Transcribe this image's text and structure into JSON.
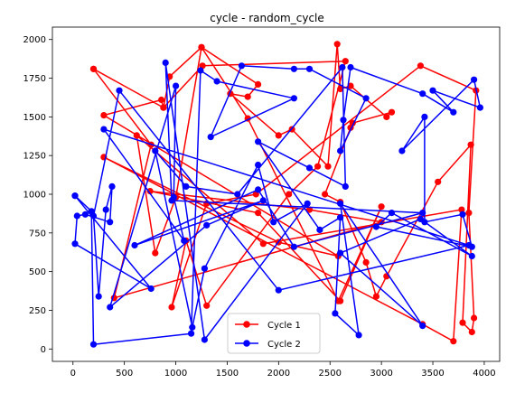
{
  "chart_data": {
    "type": "line",
    "title": "cycle - random_cycle",
    "xlabel": "",
    "ylabel": "",
    "xlim": [
      -200,
      4150
    ],
    "ylim": [
      -80,
      2080
    ],
    "xticks": [
      0,
      500,
      1000,
      1500,
      2000,
      2500,
      3000,
      3500,
      4000
    ],
    "yticks": [
      0,
      250,
      500,
      750,
      1000,
      1250,
      1500,
      1750,
      2000
    ],
    "grid": false,
    "legend_position": "lower-center",
    "series": [
      {
        "name": "Cycle 1",
        "color": "#ff0000",
        "marker": "circle",
        "points": [
          [
            200,
            1810
          ],
          [
            880,
            1560
          ],
          [
            940,
            1760
          ],
          [
            1250,
            1950
          ],
          [
            1800,
            1710
          ],
          [
            1700,
            1630
          ],
          [
            1530,
            1650
          ],
          [
            2000,
            1380
          ],
          [
            2130,
            1420
          ],
          [
            2480,
            1180
          ],
          [
            2570,
            1970
          ],
          [
            2600,
            1680
          ],
          [
            2700,
            1700
          ],
          [
            3050,
            1500
          ],
          [
            3100,
            1530
          ],
          [
            2720,
            1460
          ],
          [
            2700,
            1430
          ],
          [
            2450,
            1000
          ],
          [
            2600,
            950
          ],
          [
            2850,
            560
          ],
          [
            2950,
            340
          ],
          [
            3050,
            470
          ],
          [
            3550,
            1080
          ],
          [
            3870,
            1320
          ],
          [
            3790,
            170
          ],
          [
            3880,
            110
          ],
          [
            3900,
            200
          ],
          [
            3850,
            880
          ],
          [
            3920,
            1670
          ],
          [
            3380,
            1830
          ],
          [
            1780,
            1000
          ],
          [
            1300,
            940
          ],
          [
            960,
            270
          ],
          [
            1100,
            700
          ],
          [
            1300,
            280
          ],
          [
            2100,
            1000
          ],
          [
            2380,
            1180
          ],
          [
            2650,
            1860
          ],
          [
            1260,
            1830
          ],
          [
            880,
            1560
          ],
          [
            860,
            1610
          ],
          [
            300,
            1510
          ],
          [
            2580,
            600
          ],
          [
            2000,
            690
          ],
          [
            300,
            1240
          ],
          [
            3400,
            160
          ],
          [
            3700,
            50
          ],
          [
            3780,
            900
          ],
          [
            1850,
            680
          ],
          [
            620,
            1380
          ],
          [
            800,
            620
          ],
          [
            1000,
            980
          ],
          [
            1250,
            1950
          ],
          [
            1700,
            1490
          ],
          [
            2580,
            310
          ],
          [
            3000,
            920
          ],
          [
            2600,
            310
          ],
          [
            1800,
            880
          ],
          [
            750,
            1020
          ],
          [
            2300,
            900
          ],
          [
            3000,
            820
          ],
          [
            400,
            330
          ],
          [
            760,
            1320
          ],
          [
            200,
            1810
          ]
        ]
      },
      {
        "name": "Cycle 2",
        "color": "#0000ff",
        "marker": "circle",
        "points": [
          [
            20,
            990
          ],
          [
            180,
            890
          ],
          [
            200,
            30
          ],
          [
            1150,
            100
          ],
          [
            1240,
            1800
          ],
          [
            1400,
            1730
          ],
          [
            2150,
            1620
          ],
          [
            1340,
            1370
          ],
          [
            1640,
            1830
          ],
          [
            2150,
            1810
          ],
          [
            2300,
            1810
          ],
          [
            2850,
            1620
          ],
          [
            2600,
            1280
          ],
          [
            2630,
            1480
          ],
          [
            2700,
            1820
          ],
          [
            3400,
            1650
          ],
          [
            3700,
            1530
          ],
          [
            3500,
            1670
          ],
          [
            3960,
            1560
          ],
          [
            3900,
            1740
          ],
          [
            3200,
            1280
          ],
          [
            3420,
            1500
          ],
          [
            3420,
            820
          ],
          [
            3790,
            870
          ],
          [
            3880,
            660
          ],
          [
            2950,
            790
          ],
          [
            3100,
            880
          ],
          [
            3880,
            600
          ],
          [
            3380,
            840
          ],
          [
            2600,
            620
          ],
          [
            3400,
            150
          ],
          [
            2600,
            940
          ],
          [
            2780,
            90
          ],
          [
            2550,
            230
          ],
          [
            2600,
            850
          ],
          [
            2400,
            770
          ],
          [
            1800,
            1340
          ],
          [
            2300,
            1170
          ],
          [
            2650,
            1050
          ],
          [
            2620,
            1820
          ],
          [
            1600,
            1000
          ],
          [
            1100,
            1050
          ],
          [
            800,
            1280
          ],
          [
            1160,
            140
          ],
          [
            1280,
            520
          ],
          [
            1800,
            1190
          ],
          [
            1950,
            820
          ],
          [
            2280,
            940
          ],
          [
            1280,
            60
          ],
          [
            900,
            1850
          ],
          [
            960,
            960
          ],
          [
            3400,
            880
          ],
          [
            2150,
            660
          ],
          [
            1800,
            1030
          ],
          [
            600,
            670
          ],
          [
            1850,
            960
          ],
          [
            1300,
            800
          ],
          [
            360,
            270
          ],
          [
            1000,
            1700
          ],
          [
            980,
            980
          ],
          [
            1080,
            700
          ],
          [
            300,
            1420
          ],
          [
            3850,
            670
          ],
          [
            2000,
            380
          ],
          [
            450,
            1670
          ],
          [
            200,
            860
          ],
          [
            250,
            340
          ],
          [
            320,
            900
          ],
          [
            380,
            1050
          ],
          [
            360,
            820
          ],
          [
            120,
            870
          ],
          [
            40,
            860
          ],
          [
            20,
            680
          ],
          [
            760,
            390
          ],
          [
            20,
            990
          ]
        ]
      }
    ]
  }
}
